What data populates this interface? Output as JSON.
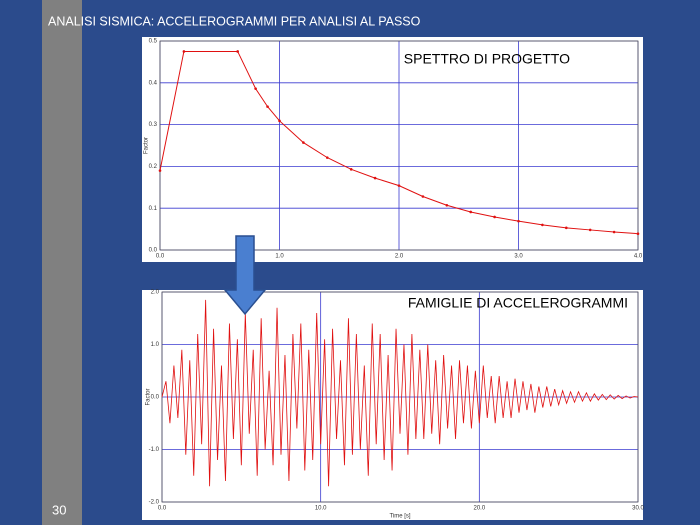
{
  "slide_title": "ANALISI  SISMICA: ACCELEROGRAMMI  PER ANALISI  AL PASSO",
  "page_number": "30",
  "chart_data": [
    {
      "type": "line",
      "annotation": "SPETTRO DI PROGETTO",
      "y_label": "Factor",
      "x": [
        0,
        0.2,
        0.65,
        0.8,
        0.9,
        1.0,
        1.2,
        1.4,
        1.6,
        1.8,
        2.0,
        2.2,
        2.4,
        2.6,
        2.8,
        3.0,
        3.2,
        3.4,
        3.6,
        3.8,
        4.0
      ],
      "series": [
        {
          "color": "#e01010",
          "values": [
            0.19,
            0.475,
            0.475,
            0.386,
            0.343,
            0.309,
            0.257,
            0.221,
            0.193,
            0.172,
            0.154,
            0.128,
            0.107,
            0.091,
            0.079,
            0.069,
            0.06,
            0.053,
            0.048,
            0.043,
            0.039
          ]
        }
      ],
      "xlim": [
        0,
        4
      ],
      "ylim": [
        0,
        0.5
      ],
      "xticks": [
        {
          "value": 0,
          "label": "0.0"
        },
        {
          "value": 1,
          "label": "1.0"
        },
        {
          "value": 2,
          "label": "2.0"
        },
        {
          "value": 3,
          "label": "3.0"
        },
        {
          "value": 4,
          "label": "4.0"
        }
      ],
      "yticks": [
        {
          "value": 0,
          "label": "0.0"
        },
        0.1,
        0.2,
        0.3,
        0.4,
        0.5
      ],
      "grid": true,
      "markers": true
    },
    {
      "type": "line",
      "annotation": "FAMIGLIE DI ACCELEROGRAMMI",
      "x_label": "Time [s]",
      "y_label": "Factor",
      "x": [
        0,
        0.25,
        0.5,
        0.75,
        1,
        1.25,
        1.5,
        1.75,
        2,
        2.25,
        2.5,
        2.75,
        3,
        3.25,
        3.5,
        3.75,
        4,
        4.25,
        4.5,
        4.75,
        5,
        5.25,
        5.5,
        5.75,
        6,
        6.25,
        6.5,
        6.75,
        7,
        7.25,
        7.5,
        7.75,
        8,
        8.25,
        8.5,
        8.75,
        9,
        9.25,
        9.5,
        9.75,
        10,
        10.25,
        10.5,
        10.75,
        11,
        11.25,
        11.5,
        11.75,
        12,
        12.25,
        12.5,
        12.75,
        13,
        13.25,
        13.5,
        13.75,
        14,
        14.25,
        14.5,
        14.75,
        15,
        15.25,
        15.5,
        15.75,
        16,
        16.25,
        16.5,
        16.75,
        17,
        17.25,
        17.5,
        17.75,
        18,
        18.25,
        18.5,
        18.75,
        19,
        19.25,
        19.5,
        19.75,
        20,
        20.25,
        20.5,
        20.75,
        21,
        21.25,
        21.5,
        21.75,
        22,
        22.25,
        22.5,
        22.75,
        23,
        23.25,
        23.5,
        23.75,
        24,
        24.25,
        24.5,
        24.75,
        25,
        25.25,
        25.5,
        25.75,
        26,
        26.25,
        26.5,
        26.75,
        27,
        27.25,
        27.5,
        27.75,
        28,
        28.25,
        28.5,
        28.75,
        29,
        29.25,
        29.5,
        29.75,
        30
      ],
      "series": [
        {
          "color": "#e01010",
          "values": [
            0,
            0.3,
            -0.5,
            0.6,
            -0.4,
            0.9,
            -1.1,
            0.7,
            -1.5,
            1.2,
            -0.9,
            1.85,
            -1.7,
            1.3,
            -1.2,
            0.6,
            -1.6,
            1.4,
            -0.8,
            1.1,
            -1.3,
            1.6,
            -0.7,
            0.9,
            -1.5,
            1.5,
            -1.0,
            0.5,
            -1.3,
            1.7,
            -1.1,
            0.8,
            -1.6,
            1.2,
            -0.6,
            1.4,
            -1.4,
            0.9,
            -1.2,
            1.6,
            -0.9,
            1.1,
            -1.7,
            1.3,
            -0.8,
            0.7,
            -1.3,
            1.5,
            -1.1,
            1.2,
            -1.0,
            0.6,
            -1.5,
            1.4,
            -0.9,
            1.2,
            -1.2,
            0.8,
            -1.4,
            1.3,
            -0.7,
            1.0,
            -1.1,
            1.2,
            -0.8,
            0.9,
            -0.8,
            1.0,
            -0.7,
            0.7,
            -0.9,
            0.8,
            -0.6,
            0.6,
            -0.8,
            0.7,
            -0.5,
            0.6,
            -0.6,
            0.5,
            -0.5,
            0.6,
            -0.4,
            0.4,
            -0.5,
            0.4,
            -0.4,
            0.3,
            -0.4,
            0.35,
            -0.3,
            0.3,
            -0.25,
            0.25,
            -0.3,
            0.2,
            -0.2,
            0.2,
            -0.18,
            0.15,
            -0.15,
            0.12,
            -0.12,
            0.1,
            -0.1,
            0.1,
            -0.08,
            0.08,
            -0.08,
            0.06,
            -0.06,
            0.05,
            -0.05,
            0.04,
            -0.04,
            0.03,
            -0.03,
            0.02,
            -0.02,
            0.01,
            0
          ]
        }
      ],
      "xlim": [
        0,
        30
      ],
      "ylim": [
        -2,
        2
      ],
      "xticks": [
        {
          "value": 0,
          "label": "0.0"
        },
        {
          "value": 10,
          "label": "10.0"
        },
        {
          "value": 20,
          "label": "20.0"
        },
        {
          "value": 30,
          "label": "30.0"
        }
      ],
      "yticks": [
        {
          "value": -2,
          "label": "-2.0"
        },
        {
          "value": -1,
          "label": "-1.0"
        },
        {
          "value": 0,
          "label": "0.0"
        },
        {
          "value": 1,
          "label": "1.0"
        },
        {
          "value": 2,
          "label": "2.0"
        }
      ],
      "grid": true,
      "markers": false
    }
  ]
}
